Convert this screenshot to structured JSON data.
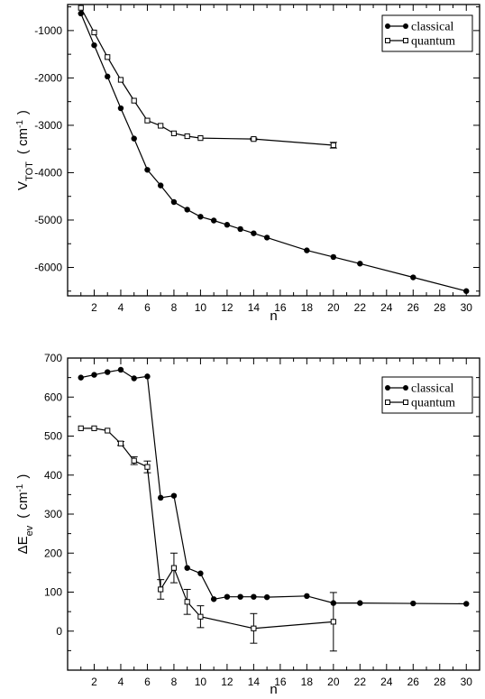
{
  "chart_data": [
    {
      "type": "line",
      "xlabel": "n",
      "ylabel_main": "V",
      "ylabel_sub": "TOT",
      "ylabel_unit_open": "( cm",
      "ylabel_unit_sup": "-1",
      "ylabel_unit_close": ")",
      "xlim": [
        0,
        31
      ],
      "ylim": [
        -6600,
        -450
      ],
      "xticks": [
        2,
        4,
        6,
        8,
        10,
        12,
        14,
        16,
        18,
        20,
        22,
        24,
        26,
        28,
        30
      ],
      "yticks": [
        -6000,
        -5000,
        -4000,
        -3000,
        -2000,
        -1000
      ],
      "legend_position": "top-right",
      "series": [
        {
          "name": "classical",
          "marker": "filled-circle",
          "x": [
            1,
            2,
            3,
            4,
            5,
            6,
            7,
            8,
            9,
            10,
            11,
            12,
            13,
            14,
            15,
            18,
            20,
            22,
            26,
            30
          ],
          "y": [
            -640,
            -1310,
            -1970,
            -2640,
            -3280,
            -3940,
            -4270,
            -4620,
            -4780,
            -4930,
            -5010,
            -5100,
            -5190,
            -5280,
            -5370,
            -5640,
            -5780,
            -5920,
            -6210,
            -6500
          ]
        },
        {
          "name": "quantum",
          "marker": "open-square",
          "x": [
            1,
            2,
            3,
            4,
            5,
            6,
            7,
            8,
            9,
            10,
            14,
            20
          ],
          "y": [
            -520,
            -1040,
            -1560,
            -2040,
            -2480,
            -2900,
            -3010,
            -3170,
            -3230,
            -3270,
            -3290,
            -3420
          ],
          "yerr": [
            0,
            0,
            0,
            0,
            0,
            0,
            0,
            0,
            0,
            0,
            20,
            60
          ]
        }
      ]
    },
    {
      "type": "line",
      "xlabel": "n",
      "ylabel_main": "ΔE",
      "ylabel_sub": "ev",
      "ylabel_unit_open": "( cm",
      "ylabel_unit_sup": "-1",
      "ylabel_unit_close": ")",
      "xlim": [
        0,
        31
      ],
      "ylim": [
        -100,
        700
      ],
      "xticks": [
        2,
        4,
        6,
        8,
        10,
        12,
        14,
        16,
        18,
        20,
        22,
        24,
        26,
        28,
        30
      ],
      "yticks": [
        0,
        100,
        200,
        300,
        400,
        500,
        600,
        700
      ],
      "legend_position": "top-right",
      "series": [
        {
          "name": "classical",
          "marker": "filled-circle",
          "x": [
            1,
            2,
            3,
            4,
            5,
            6,
            7,
            8,
            9,
            10,
            11,
            12,
            13,
            14,
            15,
            18,
            20,
            22,
            26,
            30
          ],
          "y": [
            650,
            657,
            664,
            670,
            648,
            653,
            342,
            347,
            162,
            148,
            82,
            88,
            88,
            88,
            87,
            90,
            72,
            72,
            71,
            70
          ]
        },
        {
          "name": "quantum",
          "marker": "open-square",
          "x": [
            1,
            2,
            3,
            4,
            5,
            6,
            7,
            8,
            9,
            10,
            14,
            20
          ],
          "y": [
            520,
            520,
            514,
            481,
            437,
            421,
            107,
            162,
            75,
            37,
            7,
            24
          ],
          "yerr": [
            0,
            0,
            0,
            5,
            10,
            15,
            25,
            38,
            32,
            28,
            38,
            75
          ]
        }
      ]
    }
  ]
}
